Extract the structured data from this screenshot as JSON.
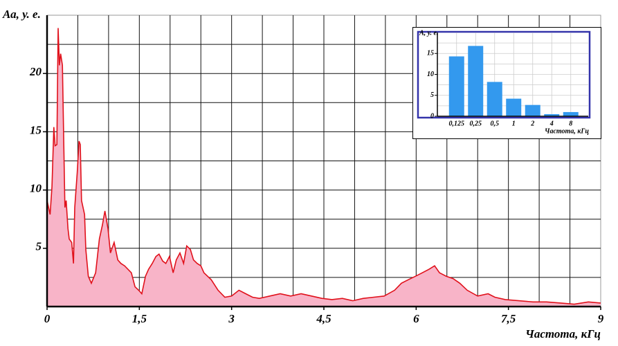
{
  "chart_data": [
    {
      "type": "area",
      "ylabel": "Аа, у. е.",
      "xlabel": "Частота, кГц",
      "color": "#e0101a",
      "fill": "#f8b4c8",
      "xlim": [
        0,
        9
      ],
      "ylim": [
        0,
        25
      ],
      "xticks": [
        0,
        {
          "value": 1.5,
          "label": "1,5"
        },
        3,
        {
          "value": 4.5,
          "label": "4,5"
        },
        6,
        {
          "value": 7.5,
          "label": "7,5"
        },
        9
      ],
      "yticks": [
        5,
        10,
        15,
        20
      ],
      "xgrid": [
        0.5,
        1,
        1.5,
        2,
        2.5,
        3,
        3.5,
        4,
        4.5,
        5,
        5.5,
        6,
        6.5,
        7,
        7.5,
        8,
        8.5
      ],
      "ygrid": [
        2.5,
        5,
        7.5,
        10,
        12.5,
        15,
        17.5,
        20,
        22.5
      ],
      "x": [
        0,
        0.05,
        0.08,
        0.11,
        0.13,
        0.16,
        0.18,
        0.2,
        0.22,
        0.25,
        0.27,
        0.29,
        0.31,
        0.34,
        0.36,
        0.4,
        0.43,
        0.45,
        0.49,
        0.52,
        0.54,
        0.56,
        0.61,
        0.63,
        0.67,
        0.72,
        0.79,
        0.85,
        0.9,
        0.94,
        0.99,
        1.03,
        1.09,
        1.15,
        1.2,
        1.26,
        1.37,
        1.43,
        1.49,
        1.54,
        1.6,
        1.65,
        1.71,
        1.77,
        1.82,
        1.88,
        1.93,
        1.99,
        2.05,
        2.1,
        2.16,
        2.22,
        2.27,
        2.33,
        2.38,
        2.44,
        2.5,
        2.55,
        2.67,
        2.78,
        2.89,
        3.0,
        3.12,
        3.23,
        3.34,
        3.45,
        3.62,
        3.79,
        3.96,
        4.13,
        4.3,
        4.47,
        4.63,
        4.8,
        4.97,
        5.14,
        5.31,
        5.48,
        5.65,
        5.76,
        5.87,
        5.99,
        6.1,
        6.21,
        6.3,
        6.38,
        6.49,
        6.6,
        6.71,
        6.83,
        7.0,
        7.17,
        7.28,
        7.45,
        7.67,
        7.9,
        8.12,
        8.35,
        8.57,
        8.8,
        9.0
      ],
      "values": [
        9.1,
        7.9,
        10.3,
        15.4,
        13.8,
        13.9,
        23.9,
        20.7,
        21.7,
        20.7,
        14.5,
        8.5,
        9.1,
        6.7,
        5.8,
        5.5,
        3.7,
        8.5,
        11.5,
        14.2,
        13.9,
        9.1,
        7.9,
        4.9,
        2.6,
        2.0,
        2.9,
        5.8,
        7.0,
        8.2,
        6.7,
        4.6,
        5.5,
        4.0,
        3.7,
        3.5,
        2.9,
        1.7,
        1.4,
        1.1,
        2.6,
        3.2,
        3.7,
        4.3,
        4.5,
        3.9,
        3.7,
        4.3,
        2.9,
        4.0,
        4.6,
        3.7,
        5.2,
        4.9,
        4.0,
        3.7,
        3.5,
        2.9,
        2.3,
        1.4,
        0.8,
        0.9,
        1.4,
        1.1,
        0.8,
        0.7,
        0.9,
        1.1,
        0.9,
        1.1,
        0.9,
        0.7,
        0.6,
        0.7,
        0.5,
        0.7,
        0.8,
        0.9,
        1.4,
        2.0,
        2.3,
        2.6,
        2.9,
        3.2,
        3.5,
        2.9,
        2.6,
        2.4,
        2.0,
        1.4,
        0.9,
        1.1,
        0.8,
        0.6,
        0.5,
        0.4,
        0.4,
        0.3,
        0.2,
        0.4,
        0.3
      ]
    },
    {
      "type": "bar",
      "ylabel": "А, у. е.",
      "xlabel": "Частота, кГц",
      "color": "#3399ee",
      "ylim": [
        0,
        20
      ],
      "yticks": [
        0,
        5,
        10,
        15
      ],
      "ygrid": [
        2.5,
        5,
        7.5,
        10,
        12.5,
        15,
        17.5
      ],
      "categories": [
        "0,125",
        "0,25",
        "0,5",
        "1",
        "2",
        "4",
        "8"
      ],
      "values": [
        14.3,
        16.8,
        8.2,
        4.2,
        2.7,
        0.5,
        1.0
      ]
    }
  ]
}
